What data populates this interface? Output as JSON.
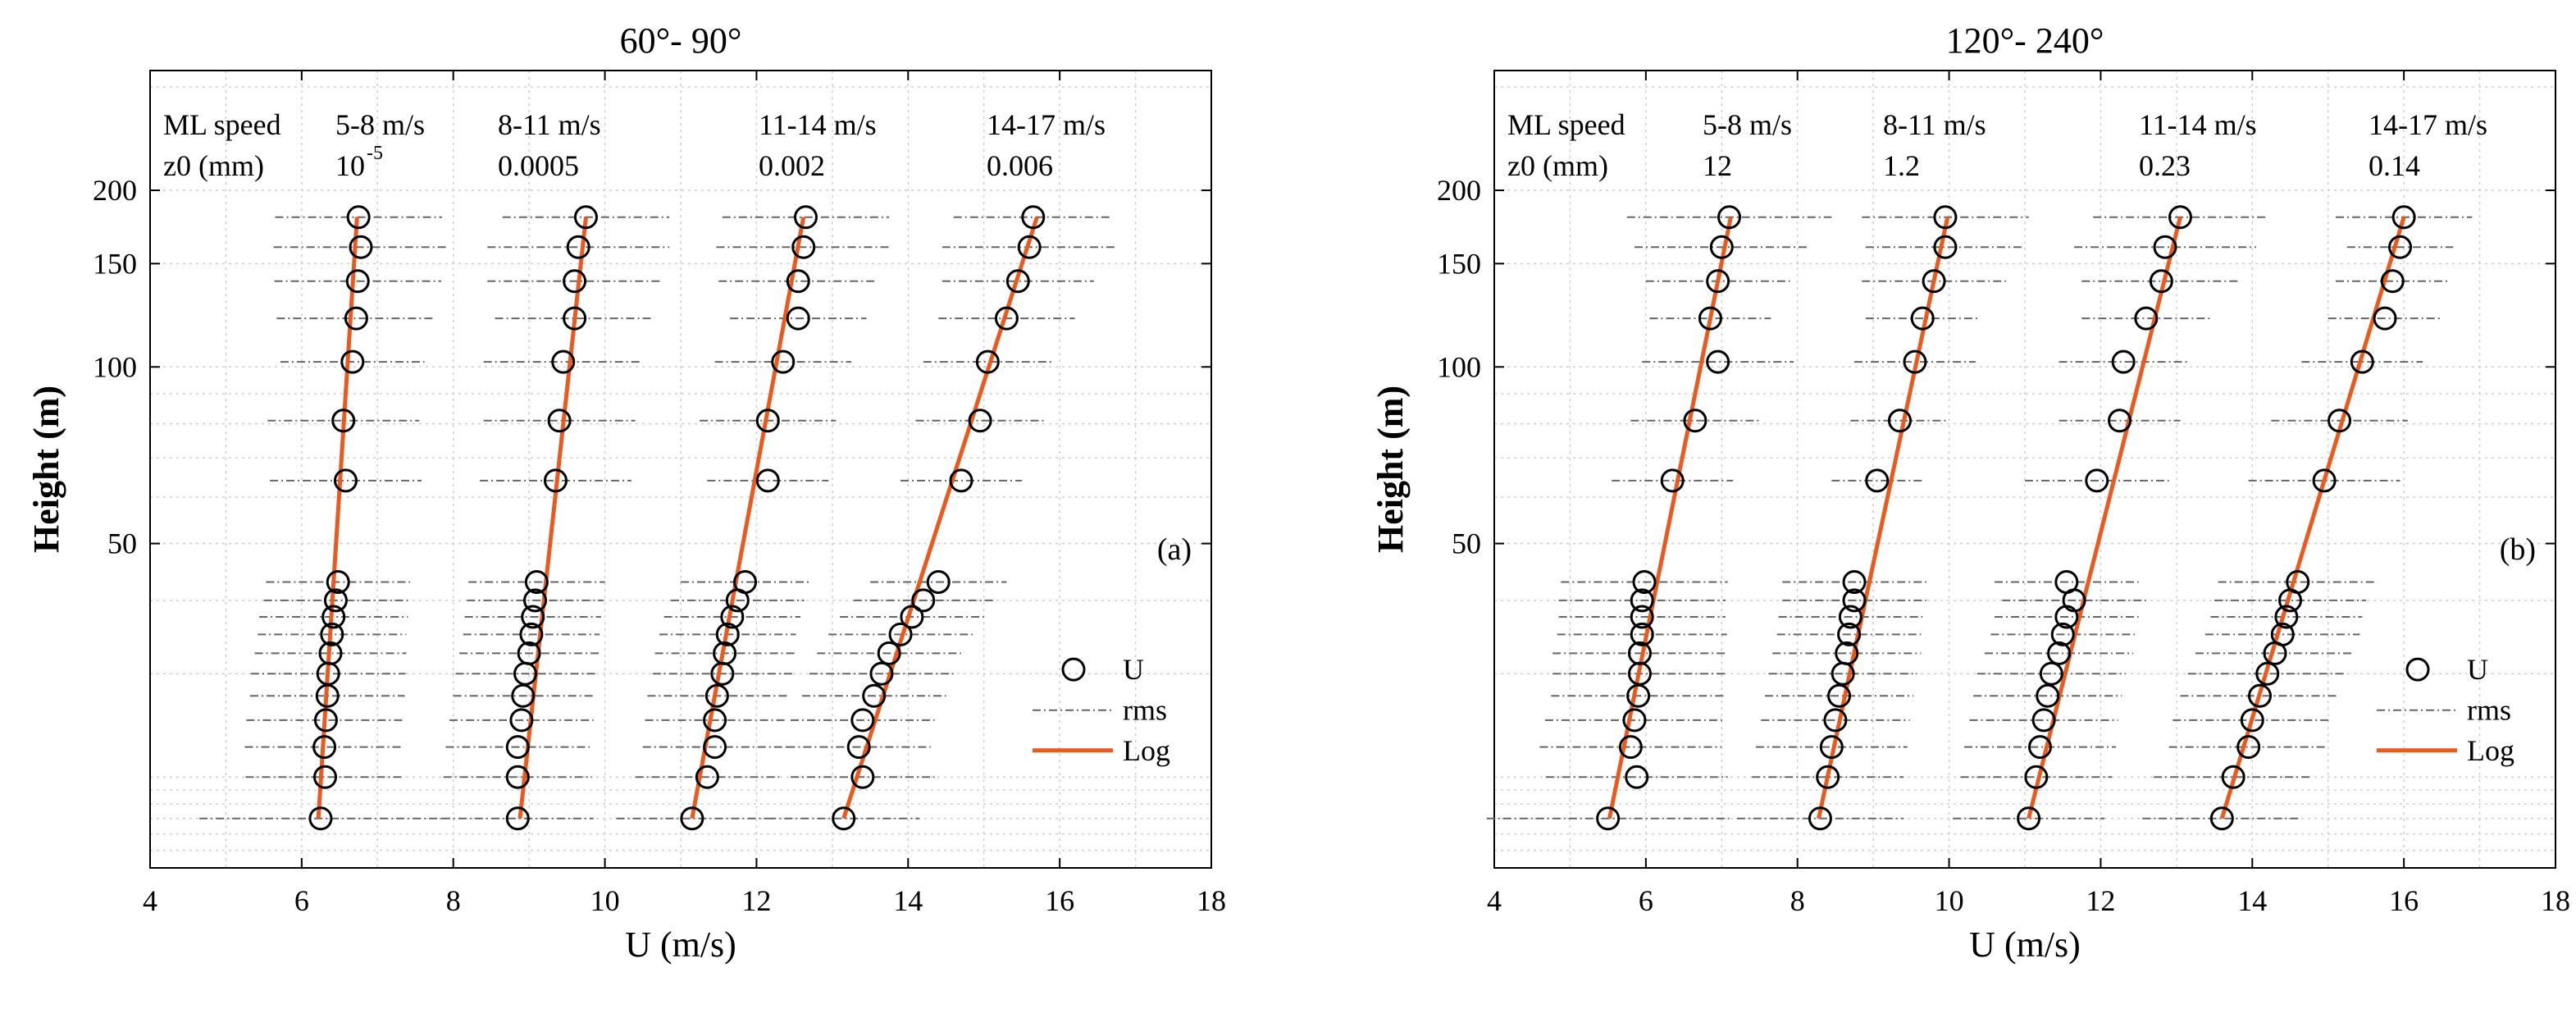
{
  "chart_data": [
    {
      "panel_label": "(a)",
      "type": "scatter",
      "title": "60°- 90°",
      "xlabel": "U (m/s)",
      "ylabel": "Height (m)",
      "xlim": [
        4,
        18
      ],
      "xticks": [
        4,
        6,
        8,
        10,
        12,
        14,
        16,
        18
      ],
      "y_scale": "log",
      "ylim": [
        14,
        320
      ],
      "yticks": [
        50,
        100,
        150,
        200
      ],
      "grid": true,
      "legend": {
        "placement": "bottom-right",
        "entries": [
          "U",
          "rms",
          "Log"
        ]
      },
      "annotation": {
        "header_speed": "ML speed",
        "header_z0": "z0 (mm)",
        "speed_bins": [
          "5-8 m/s",
          "8-11 m/s",
          "11-14 m/s",
          "14-17 m/s"
        ],
        "z0_values": [
          {
            "base": "10",
            "exp": "-5"
          },
          {
            "base": "0.0005",
            "exp": ""
          },
          {
            "base": "0.002",
            "exp": ""
          },
          {
            "base": "0.006",
            "exp": ""
          }
        ]
      },
      "heights": [
        180,
        160,
        140,
        121,
        102,
        81,
        64,
        43,
        40,
        37.5,
        35,
        32.5,
        30,
        27.5,
        25,
        22.5,
        20,
        17
      ],
      "series": [
        {
          "label": "5-8 m/s",
          "u": [
            6.75,
            6.78,
            6.74,
            6.72,
            6.67,
            6.55,
            6.58,
            6.48,
            6.45,
            6.42,
            6.4,
            6.38,
            6.35,
            6.34,
            6.32,
            6.3,
            6.31,
            6.25
          ],
          "rms": [
            1.1,
            1.15,
            1.1,
            1.05,
            0.95,
            1.0,
            1.0,
            0.95,
            0.95,
            0.98,
            0.98,
            1.0,
            1.02,
            1.02,
            1.05,
            1.05,
            1.05,
            1.6
          ],
          "log_fit": [
            [
              6.22,
              17
            ],
            [
              6.73,
              180
            ]
          ]
        },
        {
          "label": "8-11 m/s",
          "u": [
            9.75,
            9.65,
            9.6,
            9.6,
            9.45,
            9.4,
            9.35,
            9.1,
            9.08,
            9.05,
            9.03,
            9.0,
            8.95,
            8.92,
            8.9,
            8.85,
            8.85,
            8.85
          ],
          "rms": [
            1.1,
            1.2,
            1.15,
            1.05,
            1.05,
            1.0,
            1.0,
            0.9,
            0.9,
            0.9,
            0.9,
            0.92,
            0.92,
            0.92,
            0.95,
            0.95,
            0.98,
            1.0
          ],
          "log_fit": [
            [
              8.88,
              17
            ],
            [
              9.75,
              180
            ]
          ]
        },
        {
          "label": "11-14 m/s",
          "u": [
            12.65,
            12.62,
            12.55,
            12.55,
            12.35,
            12.15,
            12.15,
            11.85,
            11.75,
            11.68,
            11.62,
            11.58,
            11.55,
            11.48,
            11.45,
            11.45,
            11.35,
            11.15
          ],
          "rms": [
            1.1,
            1.15,
            1.05,
            0.9,
            0.9,
            0.9,
            0.8,
            0.85,
            0.88,
            0.9,
            0.9,
            0.92,
            0.92,
            0.92,
            0.92,
            0.95,
            0.95,
            1.0
          ],
          "log_fit": [
            [
              11.15,
              17
            ],
            [
              12.62,
              180
            ]
          ]
        },
        {
          "label": "14-17 m/s",
          "u": [
            15.65,
            15.6,
            15.45,
            15.3,
            15.05,
            14.95,
            14.7,
            14.4,
            14.2,
            14.05,
            13.9,
            13.75,
            13.65,
            13.55,
            13.4,
            13.35,
            13.4,
            13.15
          ],
          "rms": [
            1.05,
            1.15,
            1.0,
            0.9,
            0.85,
            0.85,
            0.8,
            0.9,
            0.92,
            0.95,
            0.95,
            0.95,
            0.95,
            0.95,
            0.95,
            0.95,
            0.95,
            1.0
          ],
          "log_fit": [
            [
              13.15,
              17
            ],
            [
              15.7,
              180
            ]
          ]
        }
      ]
    },
    {
      "panel_label": "(b)",
      "type": "scatter",
      "title": "120°- 240°",
      "xlabel": "U (m/s)",
      "ylabel": "Height (m)",
      "xlim": [
        4,
        18
      ],
      "xticks": [
        4,
        6,
        8,
        10,
        12,
        14,
        16,
        18
      ],
      "y_scale": "log",
      "ylim": [
        14,
        320
      ],
      "yticks": [
        50,
        100,
        150,
        200
      ],
      "grid": true,
      "legend": {
        "placement": "bottom-right",
        "entries": [
          "U",
          "rms",
          "Log"
        ]
      },
      "annotation": {
        "header_speed": "ML speed",
        "header_z0": "z0 (mm)",
        "speed_bins": [
          "5-8 m/s",
          "8-11 m/s",
          "11-14 m/s",
          "14-17 m/s"
        ],
        "z0_values": [
          {
            "base": "12",
            "exp": ""
          },
          {
            "base": "1.2",
            "exp": ""
          },
          {
            "base": "0.23",
            "exp": ""
          },
          {
            "base": "0.14",
            "exp": ""
          }
        ]
      },
      "heights": [
        180,
        160,
        140,
        121,
        102,
        81,
        64,
        43,
        40,
        37.5,
        35,
        32.5,
        30,
        27.5,
        25,
        22.5,
        20,
        17
      ],
      "series": [
        {
          "label": "5-8 m/s",
          "u": [
            7.1,
            7.0,
            6.95,
            6.85,
            6.95,
            6.65,
            6.35,
            5.98,
            5.95,
            5.95,
            5.95,
            5.92,
            5.92,
            5.9,
            5.85,
            5.8,
            5.88,
            5.5
          ],
          "rms": [
            1.35,
            1.15,
            0.95,
            0.8,
            1.0,
            0.85,
            0.8,
            1.1,
            1.1,
            1.1,
            1.12,
            1.15,
            1.15,
            1.15,
            1.18,
            1.2,
            1.2,
            1.6
          ],
          "log_fit": [
            [
              5.52,
              17
            ],
            [
              7.12,
              180
            ]
          ]
        },
        {
          "label": "8-11 m/s",
          "u": [
            9.95,
            9.95,
            9.8,
            9.65,
            9.55,
            9.35,
            9.05,
            8.75,
            8.75,
            8.7,
            8.68,
            8.65,
            8.6,
            8.55,
            8.5,
            8.45,
            8.4,
            8.3
          ],
          "rms": [
            1.1,
            1.05,
            0.95,
            0.75,
            0.8,
            0.65,
            0.6,
            0.95,
            0.95,
            0.95,
            0.95,
            0.98,
            0.98,
            0.98,
            0.98,
            1.0,
            1.0,
            1.1
          ],
          "log_fit": [
            [
              8.28,
              17
            ],
            [
              9.98,
              180
            ]
          ]
        },
        {
          "label": "11-14 m/s",
          "u": [
            13.05,
            12.85,
            12.8,
            12.6,
            12.3,
            12.25,
            11.95,
            11.55,
            11.65,
            11.55,
            11.5,
            11.45,
            11.35,
            11.3,
            11.25,
            11.2,
            11.15,
            11.05
          ],
          "rms": [
            1.15,
            1.2,
            1.05,
            0.85,
            0.85,
            0.8,
            0.95,
            0.95,
            0.95,
            0.95,
            0.95,
            0.98,
            0.98,
            0.98,
            0.98,
            1.0,
            1.0,
            1.0
          ],
          "log_fit": [
            [
              11.05,
              17
            ],
            [
              13.05,
              180
            ]
          ]
        },
        {
          "label": "14-17 m/s",
          "u": [
            16.0,
            15.95,
            15.85,
            15.75,
            15.45,
            15.15,
            14.95,
            14.6,
            14.5,
            14.45,
            14.4,
            14.3,
            14.2,
            14.1,
            14.0,
            13.95,
            13.75,
            13.6
          ],
          "rms": [
            0.9,
            0.7,
            0.75,
            0.75,
            0.8,
            0.9,
            1.0,
            1.05,
            1.0,
            1.0,
            1.02,
            1.05,
            1.05,
            1.05,
            1.05,
            1.05,
            1.05,
            1.05
          ],
          "log_fit": [
            [
              13.6,
              17
            ],
            [
              16.0,
              180
            ]
          ]
        }
      ]
    }
  ]
}
